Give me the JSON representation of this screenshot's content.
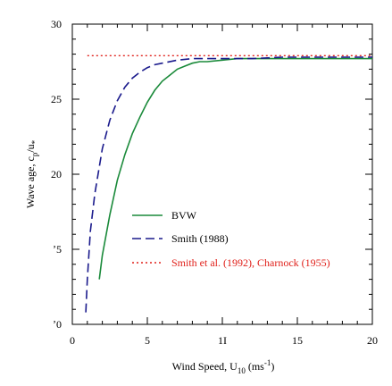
{
  "chart_data": {
    "type": "line",
    "title": "",
    "xlabel_parts": {
      "text": "Wind Speed,  U",
      "sub": "10",
      "unit_open": "  (ms",
      "sup": "-1",
      "unit_close": ")"
    },
    "ylabel_parts": {
      "text": "Wave age,  c",
      "sub1": "p",
      "mid": "/u",
      "sub2": "*"
    },
    "xlim": [
      0,
      20
    ],
    "ylim": [
      10,
      30
    ],
    "x_ticks": [
      0,
      5,
      10,
      15,
      20
    ],
    "y_ticks": [
      10,
      15,
      20,
      25,
      30
    ],
    "x_tick_labels": [
      "0",
      "5",
      "1Ι",
      "15",
      "20"
    ],
    "y_tick_labels": [
      "ʼ0",
      "ʼ5",
      "20",
      "25",
      "30"
    ],
    "grid": false,
    "legend_position": "lower-right",
    "series": [
      {
        "name": "BVW",
        "color": "#1a8a3a",
        "style": "solid",
        "x": [
          1.8,
          2.0,
          2.5,
          3.0,
          3.5,
          4.0,
          4.5,
          5.0,
          5.5,
          6.0,
          6.5,
          7.0,
          7.5,
          8.0,
          8.5,
          9.0,
          10.0,
          11.0,
          12.0,
          13.0,
          14.0,
          16.0,
          18.0,
          20.0
        ],
        "y": [
          13.0,
          14.6,
          17.3,
          19.6,
          21.3,
          22.7,
          23.8,
          24.8,
          25.6,
          26.2,
          26.6,
          27.0,
          27.2,
          27.4,
          27.5,
          27.5,
          27.6,
          27.7,
          27.7,
          27.7,
          27.7,
          27.7,
          27.7,
          27.7
        ]
      },
      {
        "name": "Smith (1988)",
        "color": "#1a1a8c",
        "style": "dashed",
        "x": [
          0.9,
          1.0,
          1.2,
          1.5,
          2.0,
          2.5,
          3.0,
          3.5,
          4.0,
          4.5,
          5.0,
          5.5,
          6.0,
          7.0,
          8.0,
          9.0,
          10.0,
          12.0,
          14.0,
          16.0,
          18.0,
          20.0
        ],
        "y": [
          10.8,
          13.0,
          16.2,
          18.7,
          21.7,
          23.6,
          24.9,
          25.8,
          26.4,
          26.8,
          27.1,
          27.3,
          27.4,
          27.6,
          27.7,
          27.7,
          27.7,
          27.7,
          27.8,
          27.8,
          27.8,
          27.8
        ]
      },
      {
        "name": "Smith et al. (1992), Charnock (1955)",
        "color": "#e0201a",
        "style": "dotted",
        "x": [
          1.0,
          20.0
        ],
        "y": [
          27.9,
          27.9
        ]
      }
    ]
  },
  "legend": {
    "entries": [
      {
        "label": "BVW"
      },
      {
        "label": "Smith  (1988)"
      },
      {
        "label": "Smith  et al. (1992), Charnock (1955)"
      }
    ]
  }
}
